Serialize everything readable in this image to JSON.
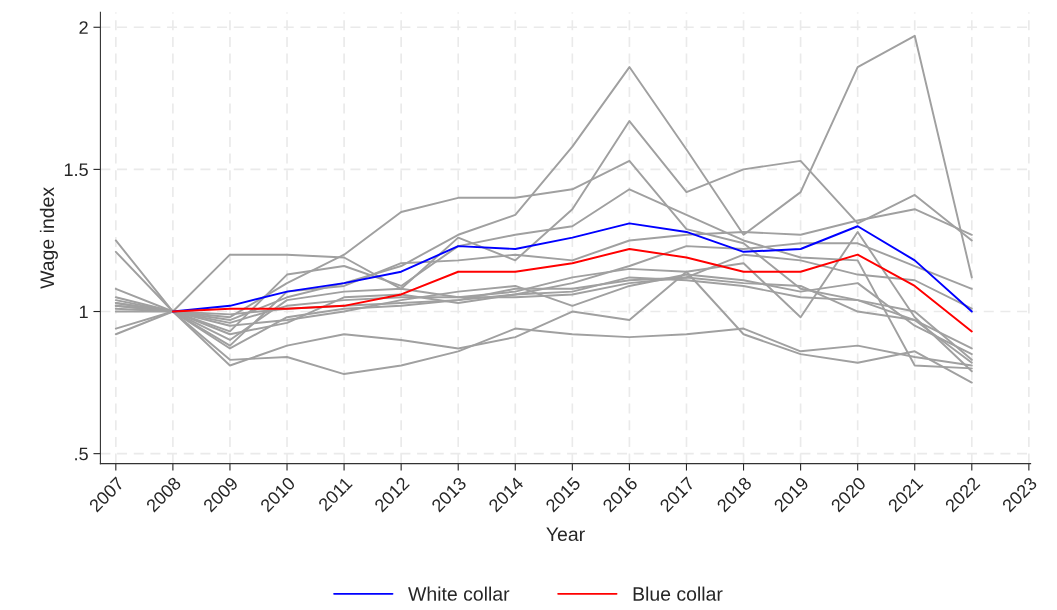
{
  "chart_data": {
    "type": "line",
    "xlabel": "Year",
    "ylabel": "Wage index",
    "x": [
      2007,
      2008,
      2009,
      2010,
      2011,
      2012,
      2013,
      2014,
      2015,
      2016,
      2017,
      2018,
      2019,
      2020,
      2021,
      2022
    ],
    "xlim": [
      2006.73,
      2023.03
    ],
    "xticks": [
      2007,
      2008,
      2009,
      2010,
      2011,
      2012,
      2013,
      2014,
      2015,
      2016,
      2017,
      2018,
      2019,
      2020,
      2021,
      2022,
      2023
    ],
    "ylim": [
      0.465,
      2.053
    ],
    "yticks": [
      {
        "value": 0.5,
        "label": ".5"
      },
      1,
      1.5,
      2
    ],
    "grid": true,
    "legend": "bottom",
    "line_style": "solid",
    "marker": "none",
    "series": [
      {
        "color": "#a0a0a0",
        "values": [
          1.03,
          1,
          0.97,
          1.05,
          1.1,
          1.16,
          1.27,
          1.34,
          1.58,
          1.86,
          1.57,
          1.27,
          1.42,
          1.86,
          1.97,
          1.12
        ]
      },
      {
        "color": "#a0a0a0",
        "values": [
          1.25,
          1,
          1.2,
          1.2,
          1.19,
          1.08,
          1.26,
          1.18,
          1.36,
          1.67,
          1.42,
          1.5,
          1.53,
          1.31,
          1.41,
          1.25
        ]
      },
      {
        "color": "#a0a0a0",
        "values": [
          1.08,
          1,
          0.98,
          1.1,
          1.2,
          1.35,
          1.4,
          1.4,
          1.43,
          1.53,
          1.29,
          1.24,
          1.08,
          1.04,
          0.97,
          0.82
        ]
      },
      {
        "color": "#a0a0a0",
        "values": [
          1.21,
          1,
          0.93,
          1.13,
          1.16,
          1.09,
          1.23,
          1.27,
          1.3,
          1.43,
          1.34,
          1.25,
          1.19,
          1.18,
          0.81,
          0.8
        ]
      },
      {
        "color": "#a0a0a0",
        "values": [
          1.05,
          1,
          0.88,
          1.07,
          1.09,
          1.17,
          1.18,
          1.2,
          1.18,
          1.25,
          1.27,
          1.28,
          1.27,
          1.32,
          1.36,
          1.27
        ]
      },
      {
        "color": "#a0a0a0",
        "values": [
          1.02,
          1,
          0.9,
          1.04,
          1.07,
          1.08,
          1.05,
          1.07,
          1.12,
          1.15,
          1.14,
          1.17,
          0.98,
          1.28,
          0.98,
          0.79
        ]
      },
      {
        "color": "#a0a0a0",
        "values": [
          0.94,
          1,
          0.83,
          0.84,
          0.78,
          0.81,
          0.86,
          0.94,
          0.92,
          0.91,
          0.92,
          0.94,
          0.86,
          0.88,
          0.84,
          0.81
        ]
      },
      {
        "color": "#a0a0a0",
        "values": [
          0.92,
          1,
          0.81,
          0.88,
          0.92,
          0.9,
          0.87,
          0.91,
          1.0,
          0.97,
          1.14,
          0.92,
          0.85,
          0.82,
          0.86,
          0.75
        ]
      },
      {
        "color": "#a0a0a0",
        "values": [
          1.03,
          1,
          0.87,
          0.98,
          1.01,
          1.02,
          1.04,
          1.06,
          1.1,
          1.16,
          1.23,
          1.22,
          1.24,
          1.24,
          1.16,
          1.08
        ]
      },
      {
        "color": "#a0a0a0",
        "values": [
          1.04,
          1,
          0.96,
          1.02,
          1.04,
          1.05,
          1.05,
          1.05,
          1.06,
          1.1,
          1.12,
          1.2,
          1.18,
          1.13,
          1.11,
          1.01
        ]
      },
      {
        "color": "#a0a0a0",
        "values": [
          1.0,
          1,
          0.99,
          1.01,
          1.02,
          1.03,
          1.04,
          1.08,
          1.08,
          1.11,
          1.12,
          1.1,
          1.09,
          1.0,
          0.97,
          0.87
        ]
      },
      {
        "color": "#a0a0a0",
        "values": [
          1.02,
          1,
          0.95,
          0.97,
          1.0,
          1.04,
          1.07,
          1.09,
          1.02,
          1.09,
          1.13,
          1.11,
          1.07,
          1.1,
          0.95,
          0.85
        ]
      },
      {
        "color": "#a0a0a0",
        "values": [
          1.01,
          1,
          0.92,
          0.96,
          1.05,
          1.06,
          1.03,
          1.06,
          1.07,
          1.12,
          1.11,
          1.09,
          1.05,
          1.04,
          1.0,
          0.83
        ]
      },
      {
        "name": "White collar",
        "color": "#0000ff",
        "x": [
          2008,
          2009,
          2010,
          2011,
          2012,
          2013,
          2014,
          2015,
          2016,
          2017,
          2018,
          2019,
          2020,
          2021,
          2022
        ],
        "values": [
          1.0,
          1.02,
          1.07,
          1.1,
          1.14,
          1.23,
          1.22,
          1.26,
          1.31,
          1.28,
          1.21,
          1.22,
          1.3,
          1.18,
          1.0
        ]
      },
      {
        "name": "Blue collar",
        "color": "#ff0000",
        "x": [
          2008,
          2009,
          2010,
          2011,
          2012,
          2013,
          2014,
          2015,
          2016,
          2017,
          2018,
          2019,
          2020,
          2021,
          2022
        ],
        "values": [
          1.0,
          1.01,
          1.01,
          1.02,
          1.06,
          1.14,
          1.14,
          1.17,
          1.22,
          1.19,
          1.14,
          1.14,
          1.2,
          1.09,
          0.93
        ]
      }
    ]
  }
}
